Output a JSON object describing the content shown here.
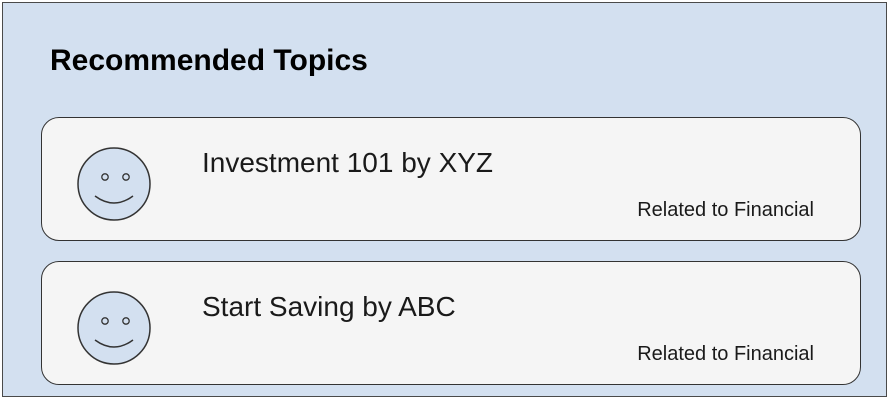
{
  "panel": {
    "title": "Recommended Topics"
  },
  "topics": [
    {
      "title": "Investment 101 by XYZ",
      "related": "Related to Financial",
      "avatar_icon": "smiley-face-icon"
    },
    {
      "title": "Start Saving by ABC",
      "related": "Related to Financial",
      "avatar_icon": "smiley-face-icon"
    }
  ],
  "colors": {
    "panel_background": "#d3e0f0",
    "card_background": "#f5f5f5",
    "border": "#333333"
  }
}
